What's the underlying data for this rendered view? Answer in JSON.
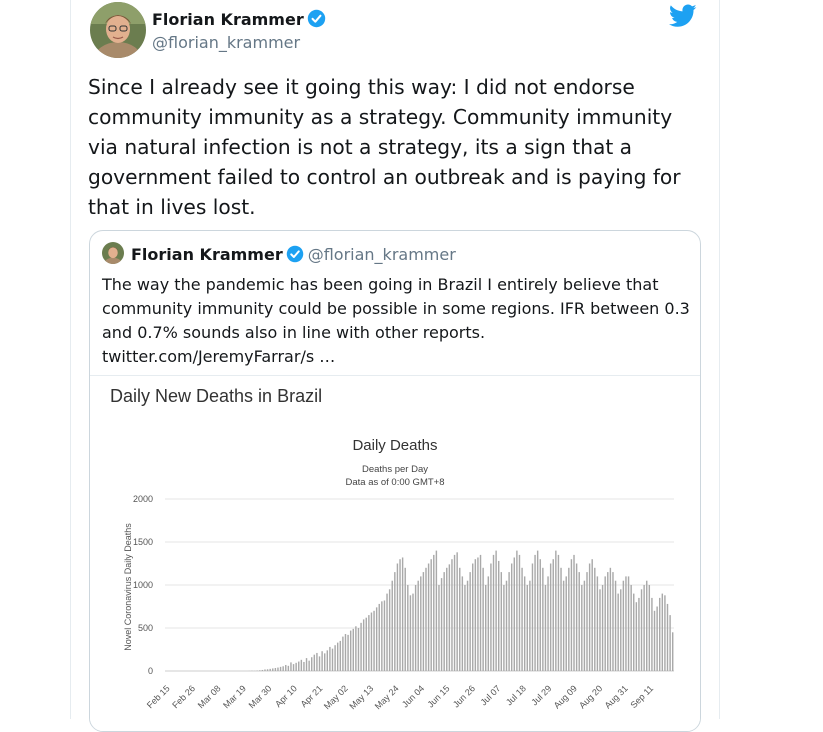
{
  "tweet": {
    "author_name": "Florian Krammer",
    "author_handle": "@florian_krammer",
    "text": "Since I already see it going this way: I did not endorse community immunity as a strategy. Community immunity via natural infection is not a strategy, its a sign that a government failed to control an outbreak and is paying for that in lives lost."
  },
  "quoted": {
    "author_name": "Florian Krammer",
    "author_handle": "@florian_krammer",
    "text": "The way the pandemic has been going in Brazil I entirely believe that community immunity could be possible in some regions. IFR between 0.3 and 0.7% sounds also in line with other reports. twitter.com/JeremyFarrar/s …"
  },
  "colors": {
    "text": "#14171a",
    "secondary_text": "#657786",
    "twitter_blue": "#1da1f2",
    "bar": "#a9a9a9",
    "grid": "#e6e6e6"
  },
  "icons": [
    "avatar",
    "verified-badge-icon",
    "twitter-bird-icon"
  ],
  "chart_data": {
    "type": "bar",
    "heading": "Daily New Deaths in Brazil",
    "title": "Daily Deaths",
    "subtitle_line1": "Deaths per Day",
    "subtitle_line2": "Data as of 0:00 GMT+8",
    "ylabel": "Novel Coronavirus Daily Deaths",
    "ylim": [
      0,
      2000
    ],
    "y_ticks": [
      "2000",
      "1500",
      "1000",
      "500",
      "0"
    ],
    "x_ticks": [
      "Feb 15",
      "Feb 26",
      "Mar 08",
      "Mar 19",
      "Mar 30",
      "Apr 10",
      "Apr 21",
      "May 02",
      "May 13",
      "May 24",
      "Jun 04",
      "Jun 15",
      "Jun 26",
      "Jul 07",
      "Jul 18",
      "Jul 29",
      "Aug 09",
      "Aug 20",
      "Aug 31",
      "Sep 11"
    ],
    "grid": true,
    "x_start": "Feb 15",
    "values": [
      0,
      0,
      0,
      0,
      0,
      0,
      0,
      0,
      0,
      0,
      0,
      0,
      0,
      0,
      0,
      0,
      0,
      0,
      0,
      0,
      0,
      0,
      0,
      0,
      0,
      0,
      0,
      0,
      0,
      0,
      0,
      0,
      1,
      3,
      2,
      5,
      8,
      12,
      18,
      20,
      25,
      30,
      35,
      40,
      48,
      55,
      70,
      60,
      100,
      80,
      95,
      110,
      130,
      105,
      150,
      120,
      160,
      190,
      210,
      170,
      230,
      205,
      240,
      280,
      260,
      300,
      330,
      350,
      400,
      430,
      420,
      470,
      490,
      520,
      500,
      560,
      600,
      620,
      650,
      680,
      700,
      740,
      780,
      810,
      820,
      900,
      950,
      1050,
      1150,
      1250,
      1300,
      1320,
      1200,
      1000,
      880,
      900,
      1000,
      1050,
      1100,
      1150,
      1200,
      1250,
      1300,
      1350,
      1400,
      1000,
      1080,
      1150,
      1200,
      1240,
      1300,
      1350,
      1380,
      1200,
      1100,
      1000,
      1050,
      1150,
      1250,
      1300,
      1320,
      1350,
      1200,
      1000,
      1100,
      1250,
      1350,
      1400,
      1280,
      1150,
      1000,
      1050,
      1150,
      1250,
      1320,
      1400,
      1350,
      1200,
      1100,
      1000,
      1050,
      1250,
      1350,
      1400,
      1300,
      1200,
      1000,
      1100,
      1250,
      1300,
      1400,
      1350,
      1200,
      1050,
      1100,
      1200,
      1300,
      1350,
      1250,
      1150,
      1000,
      1050,
      1150,
      1250,
      1300,
      1200,
      1100,
      950,
      1000,
      1100,
      1150,
      1200,
      1150,
      1050,
      900,
      950,
      1050,
      1100,
      1100,
      1000,
      900,
      800,
      850,
      950,
      1000,
      1050,
      1000,
      850,
      700,
      750,
      850,
      900,
      880,
      780,
      650,
      450
    ]
  }
}
